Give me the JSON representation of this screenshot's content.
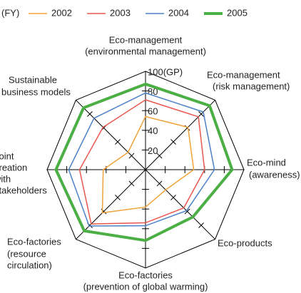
{
  "chart_data": {
    "type": "radar",
    "legend_title": "(FY)",
    "categories": [
      [
        "Eco-management",
        "(environmental management)"
      ],
      [
        "Eco-management",
        "(risk management)"
      ],
      [
        "Eco-mind",
        "(awareness)"
      ],
      [
        "Eco-products"
      ],
      [
        "Eco-factories",
        "(prevention of global warming)"
      ],
      [
        "Eco-factories",
        "(resource",
        "circulation)"
      ],
      [
        "Joint",
        "creation",
        "with",
        "stakeholders"
      ],
      [
        "Sustainable",
        "business models"
      ]
    ],
    "series": [
      {
        "name": "2002",
        "color": "#f2a23a",
        "values": [
          54,
          61,
          49,
          29,
          38,
          62,
          43,
          25
        ]
      },
      {
        "name": "2003",
        "color": "#e9574e",
        "values": [
          71,
          76,
          60,
          55,
          54,
          78,
          67,
          61
        ]
      },
      {
        "name": "2004",
        "color": "#4d82c9",
        "values": [
          78,
          83,
          70,
          59,
          57,
          81,
          78,
          74
        ]
      },
      {
        "name": "2005",
        "color": "#4caf46",
        "values": [
          87,
          92,
          88,
          68,
          72,
          88,
          91,
          89
        ],
        "width": 4
      }
    ],
    "rlim": [
      0,
      100
    ],
    "rticks": [
      20,
      40,
      60,
      80,
      {
        "value": 100,
        "label": "100(GP)"
      }
    ]
  }
}
